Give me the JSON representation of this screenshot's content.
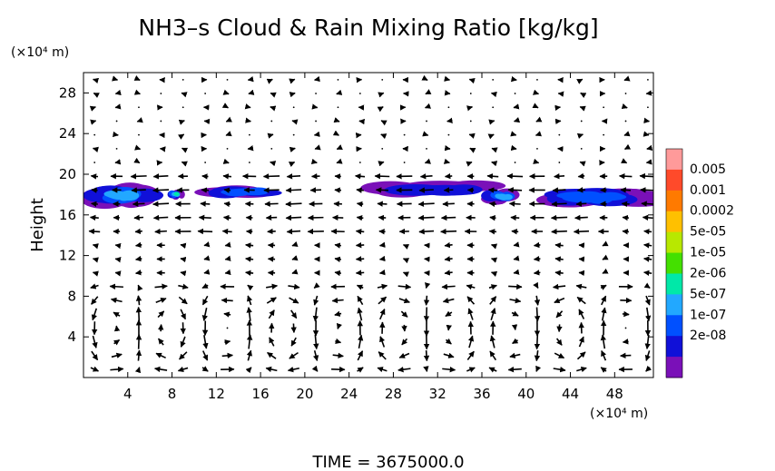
{
  "chart_data": {
    "type": "heatmap",
    "title": "NH3–s Cloud & Rain Mixing Ratio [kg/kg]",
    "ylabel": "Height",
    "y_unit": "(×10⁴ m)",
    "x_unit": "(×10⁴ m)",
    "footer": "TIME  =  3675000.0",
    "x_ticks": [
      4,
      8,
      12,
      16,
      20,
      24,
      28,
      32,
      36,
      40,
      44,
      48
    ],
    "y_ticks": [
      4,
      8,
      12,
      16,
      20,
      24,
      28
    ],
    "xlim": [
      0,
      51.5
    ],
    "ylim": [
      0,
      30
    ],
    "grid": false,
    "colorbar": {
      "labels": [
        "0.005",
        "0.001",
        "0.0002",
        "5e-05",
        "1e-05",
        "2e-06",
        "5e-07",
        "1e-07",
        "2e-08"
      ],
      "colors": [
        "#ff9a9a",
        "#ff4a2a",
        "#ff7a00",
        "#ffc000",
        "#b8e800",
        "#44e000",
        "#00e8a8",
        "#22a8ff",
        "#0050ff",
        "#1010d8",
        "#7a10b8"
      ]
    },
    "cloud_regions": [
      {
        "x": [
          0.0,
          6.8
        ],
        "y": [
          16.6,
          19.2
        ],
        "peak": "2e-06"
      },
      {
        "x": [
          7.5,
          9.2
        ],
        "y": [
          17.5,
          18.6
        ],
        "peak": "1e-05"
      },
      {
        "x": [
          11.0,
          18.5
        ],
        "y": [
          17.6,
          18.9
        ],
        "peak": "5e-07"
      },
      {
        "x": [
          26.0,
          37.0
        ],
        "y": [
          17.8,
          19.4
        ],
        "peak": "1e-07"
      },
      {
        "x": [
          36.0,
          39.5
        ],
        "y": [
          17.0,
          18.6
        ],
        "peak": "2e-06"
      },
      {
        "x": [
          42.0,
          51.5
        ],
        "y": [
          16.8,
          18.8
        ],
        "peak": "5e-07"
      }
    ],
    "vector_field": "wind arrows over full domain; strong zonal flow at 14-20, overturning circulation cells below 9"
  }
}
